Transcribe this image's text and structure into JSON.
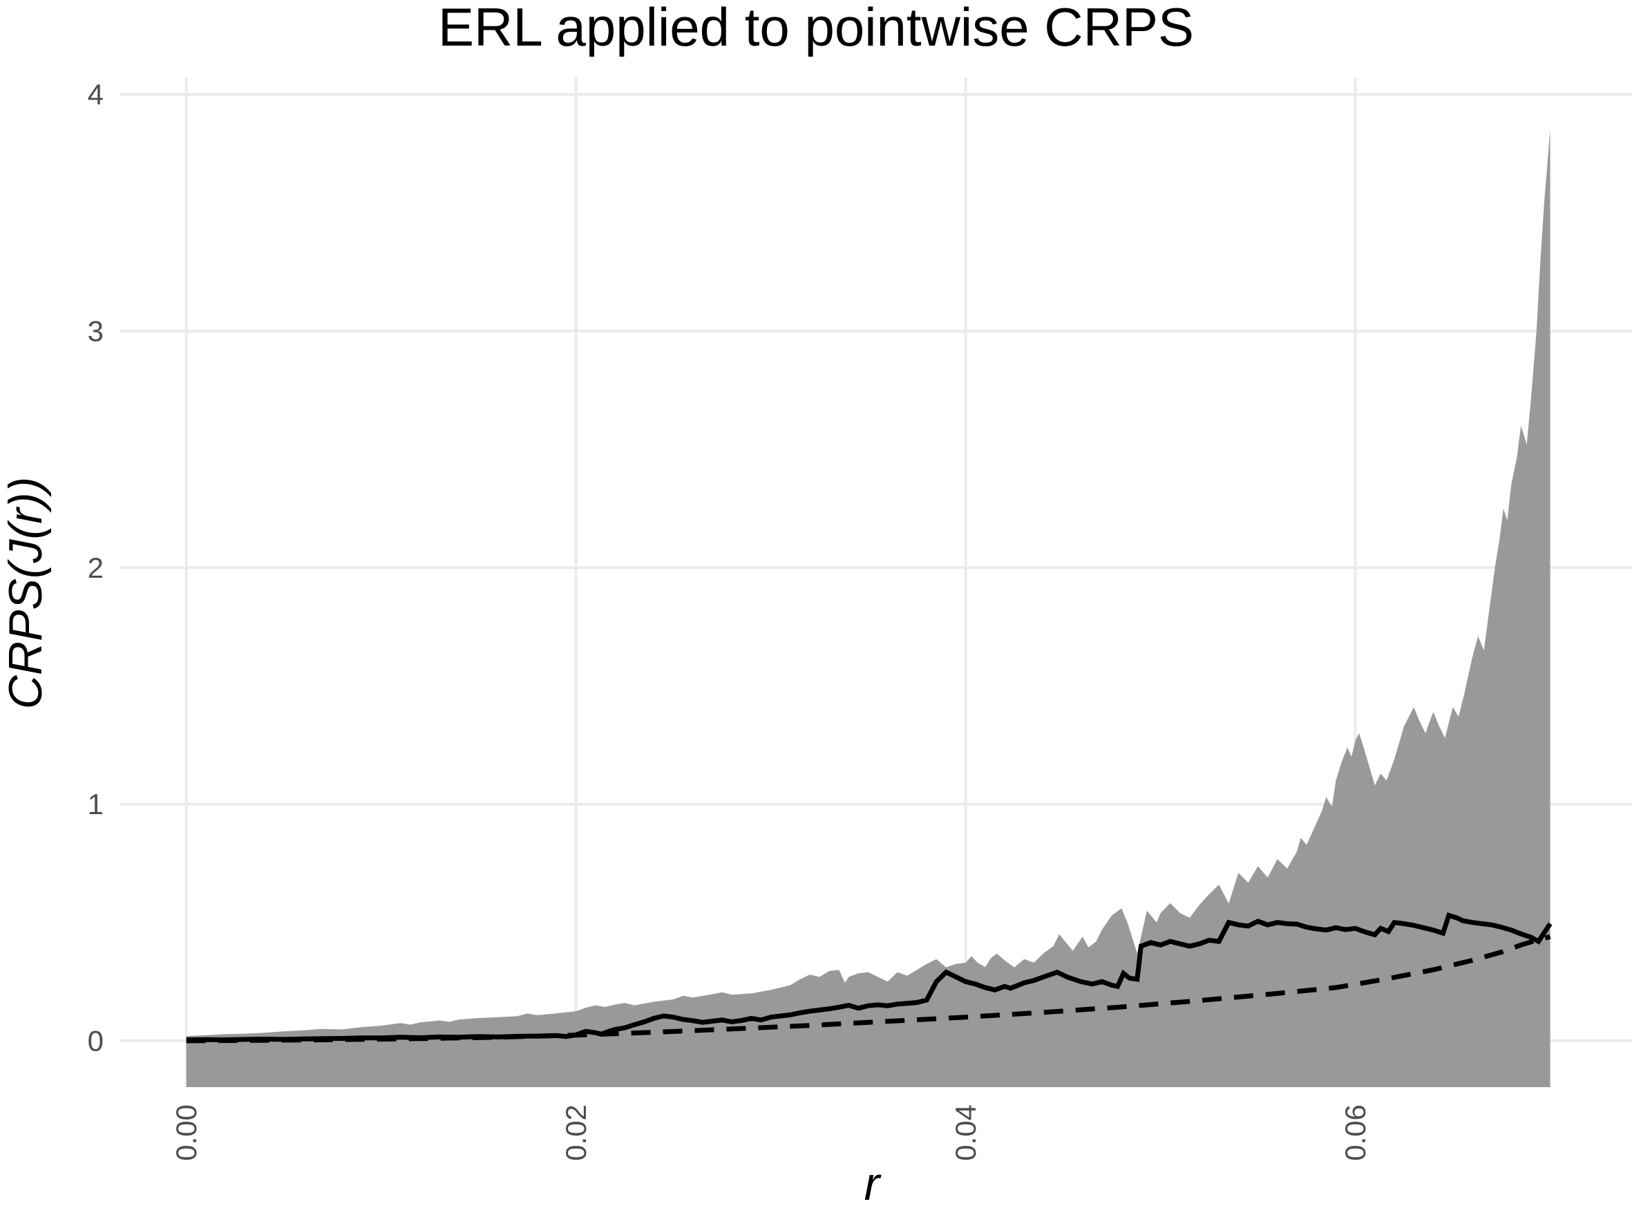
{
  "title": "ERL applied to pointwise CRPS",
  "colors": {
    "background": "#FFFFFF",
    "grid": "#EBEBEB",
    "ribbon": "#999999",
    "line": "#000000",
    "tick_label": "#4D4D4D"
  },
  "chart_data": {
    "type": "line",
    "title": "ERL applied to pointwise CRPS",
    "xlabel": "r",
    "ylabel": "CRPS(J(r))",
    "legend": "none",
    "grid": "major",
    "xlim": [
      -0.00343,
      0.0742
    ],
    "ylim": [
      -0.196,
      4.072
    ],
    "x_ticks": [
      {
        "value": 0.0,
        "label": "0.00"
      },
      {
        "value": 0.02,
        "label": "0.02"
      },
      {
        "value": 0.04,
        "label": "0.04"
      },
      {
        "value": 0.06,
        "label": "0.06"
      }
    ],
    "y_ticks": [
      {
        "value": 0,
        "label": "0"
      },
      {
        "value": 1,
        "label": "1"
      },
      {
        "value": 2,
        "label": "2"
      },
      {
        "value": 3,
        "label": "3"
      },
      {
        "value": 4,
        "label": "4"
      }
    ],
    "series": [
      {
        "name": "simulation-envelope",
        "type": "ribbon",
        "fill": "#999999",
        "lower_value": -0.196,
        "upper": [
          [
            0,
            0.02
          ],
          [
            0.001,
            0.024
          ],
          [
            0.002,
            0.028
          ],
          [
            0.003,
            0.03
          ],
          [
            0.004,
            0.034
          ],
          [
            0.005,
            0.04
          ],
          [
            0.006,
            0.044
          ],
          [
            0.007,
            0.05
          ],
          [
            0.008,
            0.048
          ],
          [
            0.009,
            0.058
          ],
          [
            0.01,
            0.064
          ],
          [
            0.011,
            0.075
          ],
          [
            0.0115,
            0.068
          ],
          [
            0.012,
            0.078
          ],
          [
            0.013,
            0.086
          ],
          [
            0.0135,
            0.08
          ],
          [
            0.014,
            0.09
          ],
          [
            0.015,
            0.096
          ],
          [
            0.016,
            0.1
          ],
          [
            0.017,
            0.104
          ],
          [
            0.0175,
            0.115
          ],
          [
            0.018,
            0.108
          ],
          [
            0.019,
            0.116
          ],
          [
            0.02,
            0.125
          ],
          [
            0.0205,
            0.14
          ],
          [
            0.021,
            0.15
          ],
          [
            0.0215,
            0.143
          ],
          [
            0.022,
            0.153
          ],
          [
            0.0225,
            0.16
          ],
          [
            0.023,
            0.15
          ],
          [
            0.024,
            0.165
          ],
          [
            0.025,
            0.175
          ],
          [
            0.0255,
            0.19
          ],
          [
            0.026,
            0.183
          ],
          [
            0.027,
            0.197
          ],
          [
            0.0275,
            0.205
          ],
          [
            0.028,
            0.195
          ],
          [
            0.029,
            0.2
          ],
          [
            0.03,
            0.215
          ],
          [
            0.0305,
            0.225
          ],
          [
            0.031,
            0.235
          ],
          [
            0.0315,
            0.26
          ],
          [
            0.032,
            0.28
          ],
          [
            0.0325,
            0.27
          ],
          [
            0.033,
            0.295
          ],
          [
            0.0335,
            0.3
          ],
          [
            0.0338,
            0.245
          ],
          [
            0.034,
            0.27
          ],
          [
            0.0345,
            0.285
          ],
          [
            0.035,
            0.29
          ],
          [
            0.0355,
            0.27
          ],
          [
            0.036,
            0.25
          ],
          [
            0.0365,
            0.29
          ],
          [
            0.037,
            0.275
          ],
          [
            0.0375,
            0.3
          ],
          [
            0.038,
            0.325
          ],
          [
            0.0385,
            0.345
          ],
          [
            0.039,
            0.31
          ],
          [
            0.0395,
            0.325
          ],
          [
            0.04,
            0.33
          ],
          [
            0.0403,
            0.358
          ],
          [
            0.0406,
            0.33
          ],
          [
            0.041,
            0.312
          ],
          [
            0.0413,
            0.35
          ],
          [
            0.0416,
            0.368
          ],
          [
            0.042,
            0.34
          ],
          [
            0.0425,
            0.31
          ],
          [
            0.043,
            0.345
          ],
          [
            0.0435,
            0.33
          ],
          [
            0.044,
            0.37
          ],
          [
            0.0445,
            0.4
          ],
          [
            0.0448,
            0.45
          ],
          [
            0.0455,
            0.38
          ],
          [
            0.046,
            0.44
          ],
          [
            0.0463,
            0.395
          ],
          [
            0.0467,
            0.42
          ],
          [
            0.047,
            0.47
          ],
          [
            0.0475,
            0.53
          ],
          [
            0.048,
            0.56
          ],
          [
            0.0483,
            0.5
          ],
          [
            0.0488,
            0.37
          ],
          [
            0.049,
            0.44
          ],
          [
            0.0493,
            0.55
          ],
          [
            0.0498,
            0.5
          ],
          [
            0.05,
            0.54
          ],
          [
            0.0505,
            0.582
          ],
          [
            0.051,
            0.54
          ],
          [
            0.0515,
            0.52
          ],
          [
            0.052,
            0.575
          ],
          [
            0.0525,
            0.62
          ],
          [
            0.053,
            0.66
          ],
          [
            0.0535,
            0.58
          ],
          [
            0.054,
            0.71
          ],
          [
            0.0545,
            0.668
          ],
          [
            0.055,
            0.738
          ],
          [
            0.0555,
            0.69
          ],
          [
            0.056,
            0.768
          ],
          [
            0.0565,
            0.728
          ],
          [
            0.057,
            0.8
          ],
          [
            0.0572,
            0.858
          ],
          [
            0.0575,
            0.828
          ],
          [
            0.058,
            0.92
          ],
          [
            0.0583,
            0.975
          ],
          [
            0.0585,
            1.03
          ],
          [
            0.0588,
            0.99
          ],
          [
            0.059,
            1.1
          ],
          [
            0.0593,
            1.18
          ],
          [
            0.0596,
            1.24
          ],
          [
            0.0598,
            1.2
          ],
          [
            0.06,
            1.27
          ],
          [
            0.0602,
            1.3
          ],
          [
            0.0605,
            1.22
          ],
          [
            0.061,
            1.08
          ],
          [
            0.0613,
            1.13
          ],
          [
            0.0616,
            1.1
          ],
          [
            0.062,
            1.19
          ],
          [
            0.0625,
            1.33
          ],
          [
            0.063,
            1.41
          ],
          [
            0.0633,
            1.35
          ],
          [
            0.0636,
            1.3
          ],
          [
            0.064,
            1.39
          ],
          [
            0.0643,
            1.33
          ],
          [
            0.0646,
            1.28
          ],
          [
            0.065,
            1.41
          ],
          [
            0.0653,
            1.37
          ],
          [
            0.0656,
            1.47
          ],
          [
            0.066,
            1.62
          ],
          [
            0.0663,
            1.71
          ],
          [
            0.0666,
            1.65
          ],
          [
            0.067,
            1.9
          ],
          [
            0.0672,
            2.02
          ],
          [
            0.0674,
            2.12
          ],
          [
            0.0676,
            2.25
          ],
          [
            0.0678,
            2.2
          ],
          [
            0.068,
            2.35
          ],
          [
            0.0683,
            2.47
          ],
          [
            0.0685,
            2.6
          ],
          [
            0.0688,
            2.52
          ],
          [
            0.069,
            2.7
          ],
          [
            0.0693,
            3.0
          ],
          [
            0.0695,
            3.3
          ],
          [
            0.0697,
            3.55
          ],
          [
            0.07,
            3.85
          ]
        ]
      },
      {
        "name": "observed-curve",
        "type": "line",
        "style": "solid",
        "color": "#000000",
        "points": [
          [
            0,
            0.004
          ],
          [
            0.001,
            0.005
          ],
          [
            0.002,
            0.004
          ],
          [
            0.003,
            0.006
          ],
          [
            0.004,
            0.007
          ],
          [
            0.005,
            0.006
          ],
          [
            0.006,
            0.008
          ],
          [
            0.007,
            0.009
          ],
          [
            0.008,
            0.01
          ],
          [
            0.009,
            0.012
          ],
          [
            0.01,
            0.012
          ],
          [
            0.011,
            0.015
          ],
          [
            0.012,
            0.013
          ],
          [
            0.013,
            0.016
          ],
          [
            0.014,
            0.015
          ],
          [
            0.015,
            0.018
          ],
          [
            0.016,
            0.016
          ],
          [
            0.017,
            0.019
          ],
          [
            0.018,
            0.02
          ],
          [
            0.019,
            0.022
          ],
          [
            0.0195,
            0.018
          ],
          [
            0.02,
            0.025
          ],
          [
            0.0205,
            0.04
          ],
          [
            0.021,
            0.034
          ],
          [
            0.0213,
            0.028
          ],
          [
            0.0217,
            0.04
          ],
          [
            0.022,
            0.048
          ],
          [
            0.0225,
            0.055
          ],
          [
            0.023,
            0.068
          ],
          [
            0.0235,
            0.08
          ],
          [
            0.024,
            0.095
          ],
          [
            0.0245,
            0.105
          ],
          [
            0.025,
            0.1
          ],
          [
            0.0255,
            0.09
          ],
          [
            0.026,
            0.085
          ],
          [
            0.0265,
            0.078
          ],
          [
            0.027,
            0.083
          ],
          [
            0.0275,
            0.088
          ],
          [
            0.028,
            0.08
          ],
          [
            0.0285,
            0.086
          ],
          [
            0.029,
            0.095
          ],
          [
            0.0295,
            0.088
          ],
          [
            0.03,
            0.1
          ],
          [
            0.0305,
            0.105
          ],
          [
            0.031,
            0.11
          ],
          [
            0.0315,
            0.118
          ],
          [
            0.032,
            0.125
          ],
          [
            0.0325,
            0.13
          ],
          [
            0.033,
            0.135
          ],
          [
            0.0335,
            0.142
          ],
          [
            0.034,
            0.15
          ],
          [
            0.0345,
            0.138
          ],
          [
            0.035,
            0.148
          ],
          [
            0.0355,
            0.152
          ],
          [
            0.036,
            0.148
          ],
          [
            0.0365,
            0.155
          ],
          [
            0.037,
            0.158
          ],
          [
            0.0375,
            0.162
          ],
          [
            0.038,
            0.172
          ],
          [
            0.0385,
            0.25
          ],
          [
            0.039,
            0.29
          ],
          [
            0.0395,
            0.27
          ],
          [
            0.04,
            0.25
          ],
          [
            0.0405,
            0.24
          ],
          [
            0.041,
            0.225
          ],
          [
            0.0415,
            0.215
          ],
          [
            0.042,
            0.23
          ],
          [
            0.0423,
            0.222
          ],
          [
            0.0427,
            0.235
          ],
          [
            0.043,
            0.245
          ],
          [
            0.0435,
            0.255
          ],
          [
            0.044,
            0.27
          ],
          [
            0.0447,
            0.29
          ],
          [
            0.0452,
            0.27
          ],
          [
            0.0459,
            0.25
          ],
          [
            0.0465,
            0.24
          ],
          [
            0.047,
            0.25
          ],
          [
            0.0475,
            0.235
          ],
          [
            0.0478,
            0.23
          ],
          [
            0.0481,
            0.285
          ],
          [
            0.0484,
            0.265
          ],
          [
            0.0488,
            0.26
          ],
          [
            0.049,
            0.4
          ],
          [
            0.0495,
            0.415
          ],
          [
            0.05,
            0.405
          ],
          [
            0.0505,
            0.42
          ],
          [
            0.051,
            0.41
          ],
          [
            0.0515,
            0.4
          ],
          [
            0.052,
            0.41
          ],
          [
            0.0525,
            0.425
          ],
          [
            0.053,
            0.42
          ],
          [
            0.0535,
            0.5
          ],
          [
            0.054,
            0.49
          ],
          [
            0.0545,
            0.485
          ],
          [
            0.055,
            0.505
          ],
          [
            0.0555,
            0.49
          ],
          [
            0.056,
            0.5
          ],
          [
            0.0565,
            0.495
          ],
          [
            0.057,
            0.493
          ],
          [
            0.0575,
            0.48
          ],
          [
            0.058,
            0.473
          ],
          [
            0.0585,
            0.468
          ],
          [
            0.059,
            0.478
          ],
          [
            0.0595,
            0.47
          ],
          [
            0.06,
            0.475
          ],
          [
            0.0605,
            0.46
          ],
          [
            0.061,
            0.448
          ],
          [
            0.0613,
            0.475
          ],
          [
            0.0617,
            0.462
          ],
          [
            0.062,
            0.5
          ],
          [
            0.0625,
            0.495
          ],
          [
            0.063,
            0.488
          ],
          [
            0.0635,
            0.478
          ],
          [
            0.064,
            0.468
          ],
          [
            0.0645,
            0.455
          ],
          [
            0.0648,
            0.53
          ],
          [
            0.0652,
            0.52
          ],
          [
            0.0655,
            0.508
          ],
          [
            0.066,
            0.5
          ],
          [
            0.0665,
            0.495
          ],
          [
            0.067,
            0.49
          ],
          [
            0.0675,
            0.48
          ],
          [
            0.068,
            0.468
          ],
          [
            0.0685,
            0.452
          ],
          [
            0.069,
            0.438
          ],
          [
            0.0694,
            0.42
          ],
          [
            0.07,
            0.495
          ]
        ]
      },
      {
        "name": "theoretical-curve",
        "type": "line",
        "style": "dashed",
        "color": "#000000",
        "points": [
          [
            0,
            0
          ],
          [
            0.004,
            0.002
          ],
          [
            0.008,
            0.005
          ],
          [
            0.012,
            0.009
          ],
          [
            0.016,
            0.015
          ],
          [
            0.02,
            0.024
          ],
          [
            0.024,
            0.036
          ],
          [
            0.028,
            0.05
          ],
          [
            0.032,
            0.065
          ],
          [
            0.036,
            0.082
          ],
          [
            0.04,
            0.1
          ],
          [
            0.044,
            0.12
          ],
          [
            0.048,
            0.143
          ],
          [
            0.052,
            0.17
          ],
          [
            0.056,
            0.2
          ],
          [
            0.059,
            0.225
          ],
          [
            0.0615,
            0.26
          ],
          [
            0.064,
            0.3
          ],
          [
            0.066,
            0.34
          ],
          [
            0.0675,
            0.375
          ],
          [
            0.0685,
            0.405
          ],
          [
            0.0693,
            0.425
          ],
          [
            0.07,
            0.44
          ]
        ]
      }
    ]
  }
}
